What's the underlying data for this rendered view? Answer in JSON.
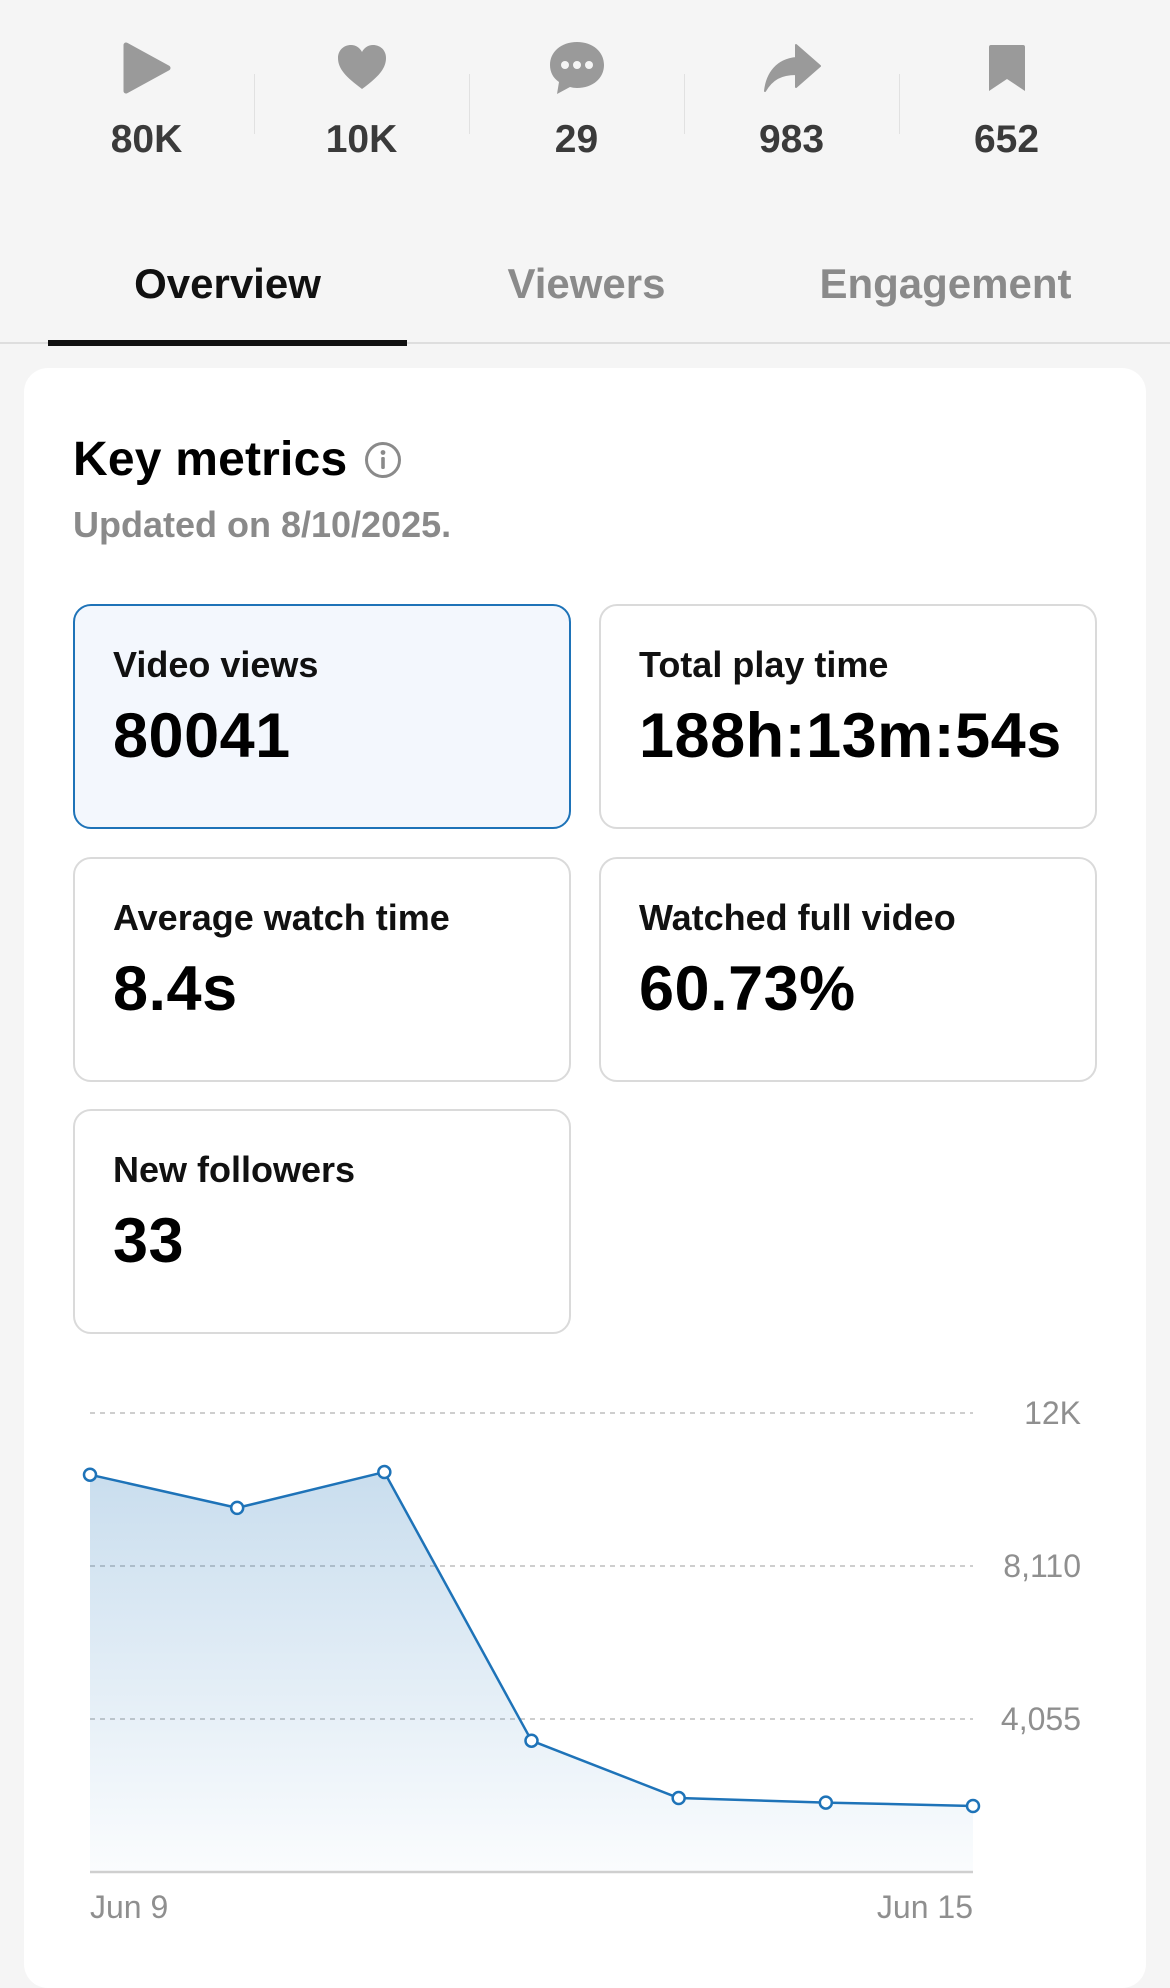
{
  "stats": [
    {
      "icon": "play-icon",
      "value": "80K"
    },
    {
      "icon": "heart-icon",
      "value": "10K"
    },
    {
      "icon": "comment-icon",
      "value": "29"
    },
    {
      "icon": "share-icon",
      "value": "983"
    },
    {
      "icon": "bookmark-icon",
      "value": "652"
    }
  ],
  "tabs": [
    {
      "label": "Overview",
      "active": true
    },
    {
      "label": "Viewers",
      "active": false
    },
    {
      "label": "Engagement",
      "active": false
    }
  ],
  "key_metrics": {
    "title": "Key metrics",
    "info_icon": "info-icon",
    "updated": "Updated on 8/10/2025.",
    "metrics": [
      {
        "label": "Video views",
        "value": "80041",
        "selected": true
      },
      {
        "label": "Total play time",
        "value": "188h:13m:54s",
        "selected": false
      },
      {
        "label": "Average watch time",
        "value": "8.4s",
        "selected": false
      },
      {
        "label": "Watched full video",
        "value": "60.73%",
        "selected": false
      },
      {
        "label": "New followers",
        "value": "33",
        "selected": false
      }
    ]
  },
  "colors": {
    "accent": "#1e73b8",
    "tab_active": "#111111",
    "muted": "#8a8a8a",
    "icon_gray": "#9a9a9a"
  },
  "chart_data": {
    "type": "area",
    "x": [
      "Jun 9",
      "Jun 10",
      "Jun 11",
      "Jun 12",
      "Jun 13",
      "Jun 14",
      "Jun 15"
    ],
    "x_tick_labels": [
      "Jun 9",
      "Jun 15"
    ],
    "values": [
      10530,
      9650,
      10600,
      3480,
      1960,
      1840,
      1750
    ],
    "y_ticks": [
      {
        "value": 4055,
        "label": "4,055"
      },
      {
        "value": 8110,
        "label": "8,110"
      },
      {
        "value": 12165,
        "label": "12K"
      }
    ],
    "ylim": [
      0,
      12165
    ],
    "grid": true,
    "color": "#1e73b8"
  }
}
